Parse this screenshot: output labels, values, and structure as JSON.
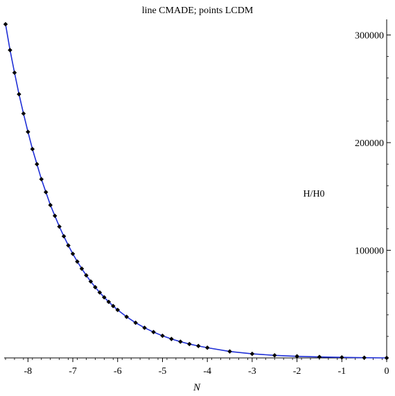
{
  "chart_data": {
    "type": "line",
    "title": "line CMADE; points LCDM",
    "xlabel": "N",
    "ylabel": "H/H0",
    "xlim": [
      -8.5,
      0
    ],
    "ylim": [
      0,
      310000
    ],
    "grid": false,
    "x_ticks": [
      -8,
      -7,
      -6,
      -5,
      -4,
      -3,
      -2,
      -1,
      0
    ],
    "x_tick_labels": [
      "-8",
      "-7",
      "-6",
      "-5",
      "-4",
      "-3",
      "-2",
      "-1",
      "0"
    ],
    "y_ticks": [
      100000,
      200000,
      300000
    ],
    "y_tick_labels": [
      "100000",
      "200000",
      "300000"
    ],
    "series": [
      {
        "name": "CMADE",
        "style": "line",
        "color": "#1f2fd6",
        "x": [
          -8.5,
          -8.4,
          -8.3,
          -8.2,
          -8.1,
          -8.0,
          -7.9,
          -7.8,
          -7.7,
          -7.6,
          -7.5,
          -7.4,
          -7.3,
          -7.2,
          -7.1,
          -7.0,
          -6.9,
          -6.8,
          -6.7,
          -6.6,
          -6.5,
          -6.4,
          -6.3,
          -6.2,
          -6.1,
          -6.0,
          -5.8,
          -5.6,
          -5.4,
          -5.2,
          -5.0,
          -4.8,
          -4.6,
          -4.4,
          -4.2,
          -4.0,
          -3.5,
          -3.0,
          -2.5,
          -2.0,
          -1.5,
          -1.0,
          -0.5,
          0
        ],
        "y": [
          310000,
          286000,
          265000,
          245000,
          227000,
          210000,
          194000,
          180000,
          166000,
          154000,
          142000,
          132000,
          122000,
          113000,
          104500,
          96700,
          89500,
          82900,
          76700,
          71000,
          65700,
          60800,
          56300,
          52100,
          48200,
          44600,
          38200,
          32700,
          28000,
          24000,
          20600,
          17600,
          15100,
          12900,
          11100,
          9500,
          6000,
          3800,
          2400,
          1500,
          900,
          500,
          200,
          1
        ]
      },
      {
        "name": "LCDM",
        "style": "points",
        "color": "#000000",
        "x": [
          -8.5,
          -8.4,
          -8.3,
          -8.2,
          -8.1,
          -8.0,
          -7.9,
          -7.8,
          -7.7,
          -7.6,
          -7.5,
          -7.4,
          -7.3,
          -7.2,
          -7.1,
          -7.0,
          -6.9,
          -6.8,
          -6.7,
          -6.6,
          -6.5,
          -6.4,
          -6.3,
          -6.2,
          -6.1,
          -6.0,
          -5.8,
          -5.6,
          -5.4,
          -5.2,
          -5.0,
          -4.8,
          -4.6,
          -4.4,
          -4.2,
          -4.0,
          -3.5,
          -3.0,
          -2.5,
          -2.0,
          -1.5,
          -1.0,
          -0.5,
          0
        ],
        "y": [
          310000,
          286000,
          265000,
          245000,
          227000,
          210000,
          194000,
          180000,
          166000,
          154000,
          142000,
          132000,
          122000,
          113000,
          104500,
          96700,
          89500,
          82900,
          76700,
          71000,
          65700,
          60800,
          56300,
          52100,
          48200,
          44600,
          38200,
          32700,
          28000,
          24000,
          20600,
          17600,
          15100,
          12900,
          11100,
          9500,
          6000,
          3800,
          2400,
          1500,
          900,
          500,
          200,
          1
        ]
      }
    ]
  }
}
